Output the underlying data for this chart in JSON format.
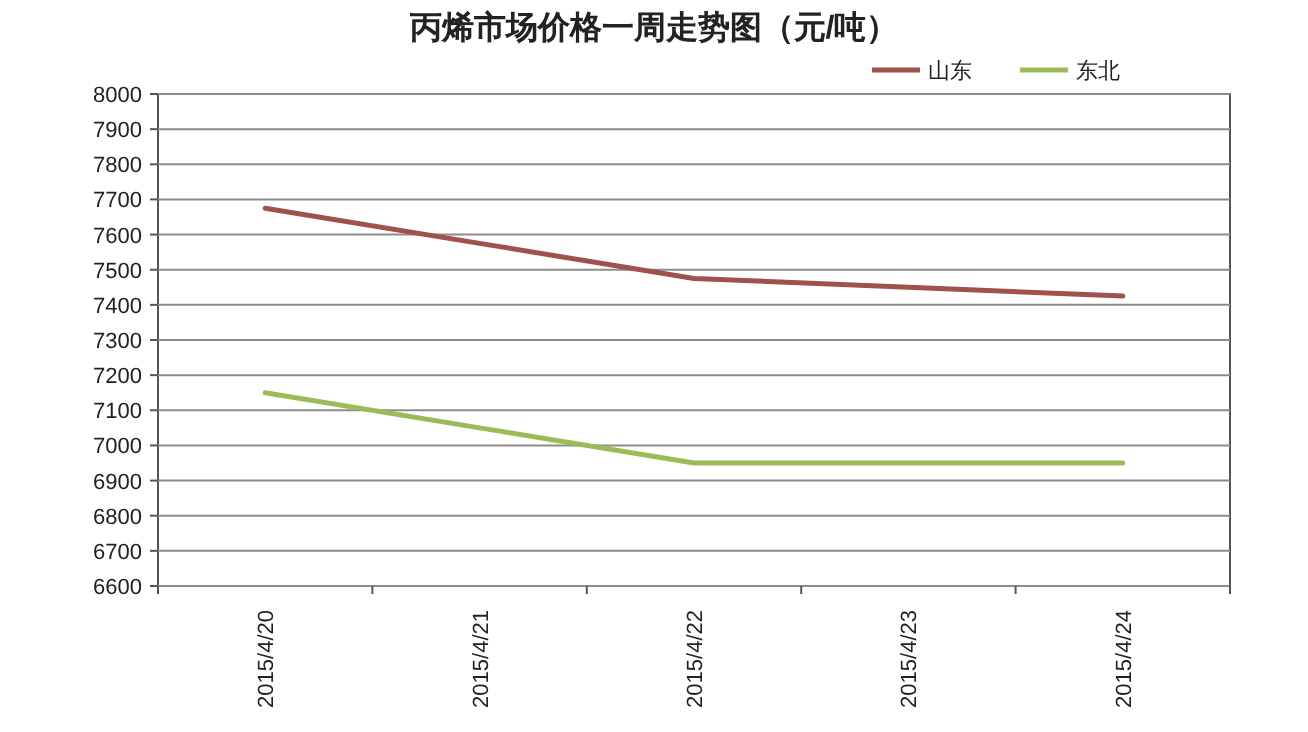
{
  "chart_data": {
    "type": "line",
    "title": "丙烯市场价格一周走势图（元/吨）",
    "categories": [
      "2015/4/20",
      "2015/4/21",
      "2015/4/22",
      "2015/4/23",
      "2015/4/24"
    ],
    "series": [
      {
        "name": "山东",
        "color": "#a0504d",
        "values": [
          7675,
          7575,
          7475,
          7450,
          7425
        ]
      },
      {
        "name": "东北",
        "color": "#9bbb59",
        "values": [
          7150,
          7050,
          6950,
          6950,
          6950
        ]
      }
    ],
    "ylim": [
      6600,
      8000
    ],
    "yticks": [
      6600,
      6700,
      6800,
      6900,
      7000,
      7100,
      7200,
      7300,
      7400,
      7500,
      7600,
      7700,
      7800,
      7900,
      8000
    ],
    "grid": "y",
    "legend": "top right",
    "marker": "none",
    "line_style": "solid"
  }
}
